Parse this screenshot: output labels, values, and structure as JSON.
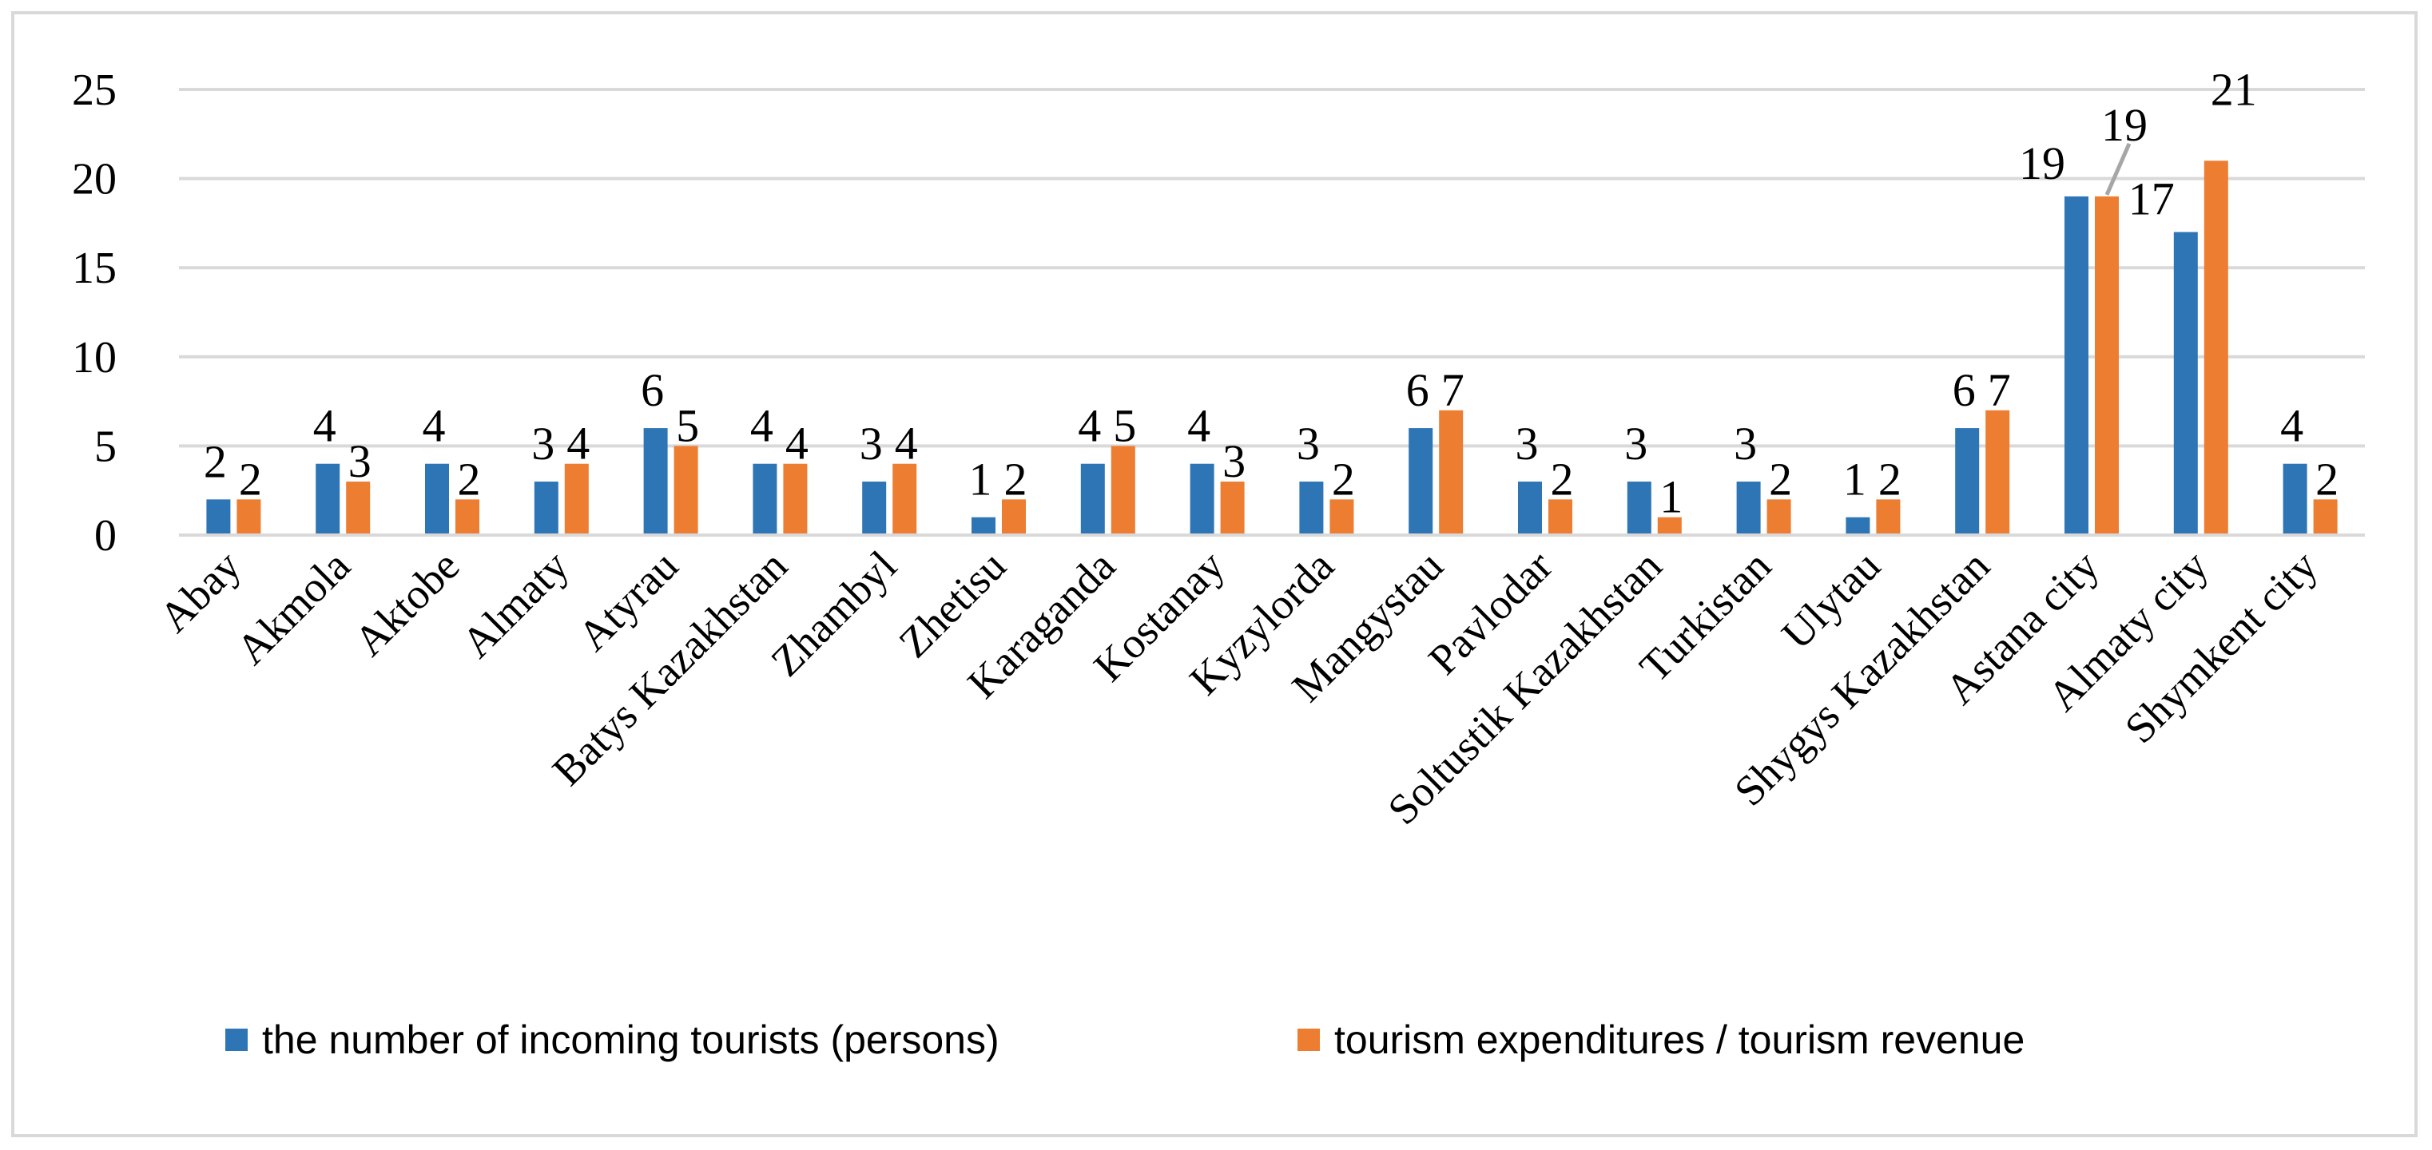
{
  "chart_data": {
    "type": "bar",
    "title": "",
    "xlabel": "",
    "ylabel": "",
    "ylim": [
      0,
      25
    ],
    "yticks": [
      0,
      5,
      10,
      15,
      20,
      25
    ],
    "grid": true,
    "legend_position": "bottom",
    "categories": [
      "Abay",
      "Akmola",
      "Aktobe",
      "Almaty",
      "Atyrau",
      "Batys Kazakhstan",
      "Zhambyl",
      "Zhetisu",
      "Karaganda",
      "Kostanay",
      "Kyzylorda",
      "Mangystau",
      "Pavlodar",
      "Soltustik Kazakhstan",
      "Turkistan",
      "Ulytau",
      "Shygys Kazakhstan",
      "Astana city",
      "Almaty city",
      "Shymkent city"
    ],
    "series": [
      {
        "name": "the number of incoming tourists (persons)",
        "color": "#2e75b6",
        "values": [
          2,
          4,
          4,
          3,
          6,
          4,
          3,
          1,
          4,
          4,
          3,
          6,
          3,
          3,
          3,
          1,
          6,
          19,
          17,
          4
        ]
      },
      {
        "name": "tourism expenditures / tourism revenue",
        "color": "#ed7d31",
        "values": [
          2,
          3,
          2,
          4,
          5,
          4,
          4,
          2,
          5,
          3,
          2,
          7,
          2,
          1,
          2,
          2,
          7,
          19,
          21,
          2
        ]
      }
    ]
  }
}
